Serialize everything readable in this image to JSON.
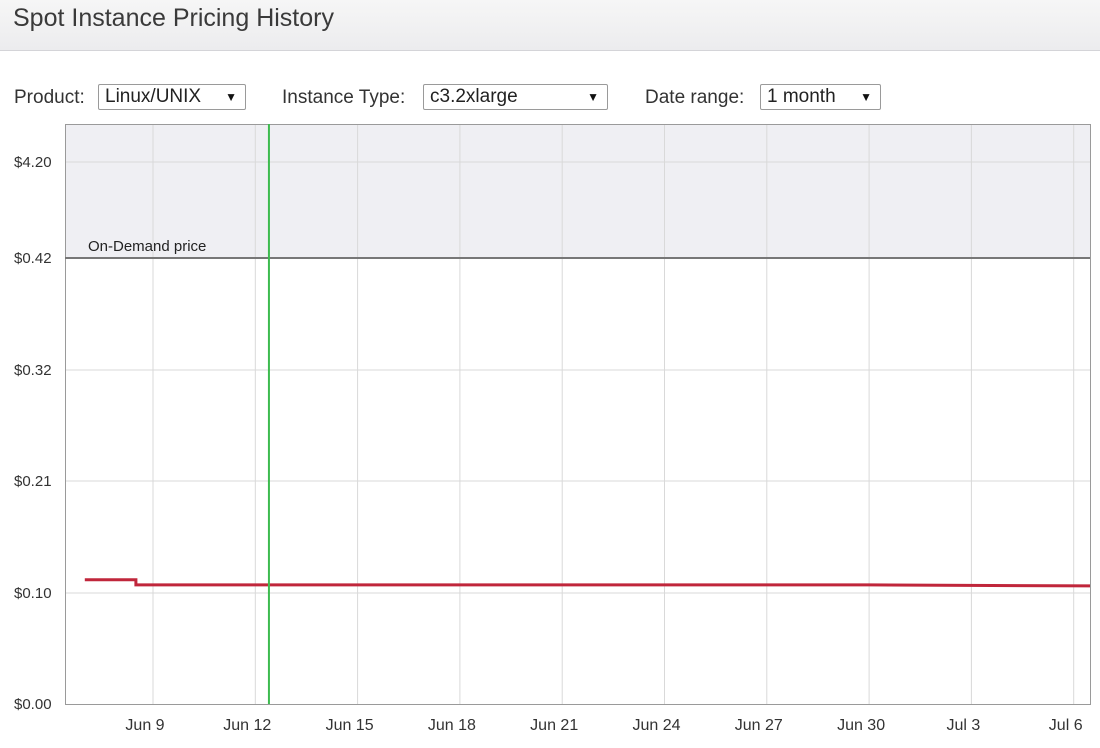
{
  "window": {
    "title": "Spot Instance Pricing History"
  },
  "controls": {
    "product": {
      "label": "Product:",
      "value": "Linux/UNIX"
    },
    "instance_type": {
      "label": "Instance Type:",
      "value": "c3.2xlarge"
    },
    "date_range": {
      "label": "Date range:",
      "value": "1 month"
    }
  },
  "chart_data": {
    "type": "line",
    "y_tick_labels": [
      "$0.00",
      "$0.10",
      "$0.21",
      "$0.32",
      "$0.42",
      "$4.20"
    ],
    "x_tick_labels": [
      "Jun 9",
      "Jun 12",
      "Jun 15",
      "Jun 18",
      "Jun 21",
      "Jun 24",
      "Jun 27",
      "Jun 30",
      "Jul 3",
      "Jul 6"
    ],
    "x": [
      "Jun 7",
      "Jun 8.5",
      "Jun 8.5",
      "Jun 30",
      "Jul 6.5"
    ],
    "series": [
      {
        "values": [
          0.113,
          0.113,
          0.108,
          0.108,
          0.107
        ],
        "color": "#c0263b"
      }
    ],
    "on_demand": {
      "label": "On-Demand price",
      "value": 0.42,
      "color": "#777777"
    },
    "cursor": {
      "x": "Jun 12.4",
      "color": "#3dbb4f"
    },
    "ylim": [
      0.0,
      4.2
    ],
    "grid": true,
    "upper_band_color": "#efeff3"
  }
}
